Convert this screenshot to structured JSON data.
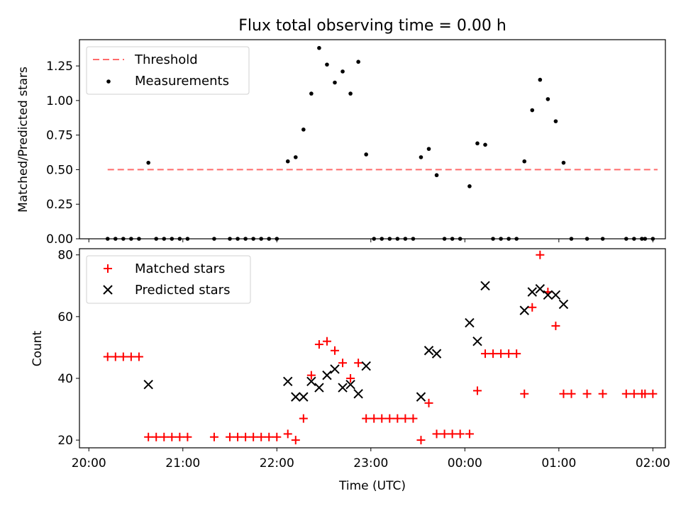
{
  "chart_data": [
    {
      "type": "scatter",
      "title": "Flux total observing time = 0.00 h",
      "ylabel": "Matched/Predicted stars",
      "ylim": [
        0,
        1.44
      ],
      "yticks": [
        0,
        0.25,
        0.5,
        0.75,
        1.0,
        1.25
      ],
      "ytick_labels": [
        "0.00",
        "0.25",
        "0.50",
        "0.75",
        "1.00",
        "1.25"
      ],
      "legend": {
        "placement": "upper-left",
        "entries": [
          "Threshold",
          "Measurements"
        ]
      },
      "threshold": {
        "name": "Threshold",
        "value": 0.5,
        "x_range": [
          "20:12",
          "02:03"
        ],
        "color": "#ff6b6b"
      },
      "series": [
        {
          "name": "Measurements",
          "color": "#000000",
          "points": [
            [
              "20:12",
              0
            ],
            [
              "20:17",
              0
            ],
            [
              "20:22",
              0
            ],
            [
              "20:27",
              0
            ],
            [
              "20:32",
              0
            ],
            [
              "20:38",
              0.55
            ],
            [
              "20:43",
              0
            ],
            [
              "20:48",
              0
            ],
            [
              "20:53",
              0
            ],
            [
              "20:58",
              0
            ],
            [
              "21:03",
              0
            ],
            [
              "21:20",
              0
            ],
            [
              "21:30",
              0
            ],
            [
              "21:35",
              0
            ],
            [
              "21:40",
              0
            ],
            [
              "21:45",
              0
            ],
            [
              "21:50",
              0
            ],
            [
              "21:55",
              0
            ],
            [
              "22:00",
              0
            ],
            [
              "22:07",
              0.56
            ],
            [
              "22:12",
              0.59
            ],
            [
              "22:17",
              0.79
            ],
            [
              "22:22",
              1.05
            ],
            [
              "22:27",
              1.38
            ],
            [
              "22:32",
              1.26
            ],
            [
              "22:37",
              1.13
            ],
            [
              "22:42",
              1.21
            ],
            [
              "22:47",
              1.05
            ],
            [
              "22:52",
              1.28
            ],
            [
              "22:57",
              0.61
            ],
            [
              "23:02",
              0
            ],
            [
              "23:07",
              0
            ],
            [
              "23:12",
              0
            ],
            [
              "23:17",
              0
            ],
            [
              "23:22",
              0
            ],
            [
              "23:27",
              0
            ],
            [
              "23:32",
              0.59
            ],
            [
              "23:37",
              0.65
            ],
            [
              "23:42",
              0.46
            ],
            [
              "23:47",
              0
            ],
            [
              "23:52",
              0
            ],
            [
              "23:57",
              0
            ],
            [
              "00:03",
              0.38
            ],
            [
              "00:08",
              0.69
            ],
            [
              "00:13",
              0.68
            ],
            [
              "00:18",
              0
            ],
            [
              "00:23",
              0
            ],
            [
              "00:28",
              0
            ],
            [
              "00:33",
              0
            ],
            [
              "00:38",
              0.56
            ],
            [
              "00:43",
              0.93
            ],
            [
              "00:48",
              1.15
            ],
            [
              "00:53",
              1.01
            ],
            [
              "00:58",
              0.85
            ],
            [
              "01:03",
              0.55
            ],
            [
              "01:08",
              0
            ],
            [
              "01:18",
              0
            ],
            [
              "01:28",
              0
            ],
            [
              "01:43",
              0
            ],
            [
              "01:48",
              0
            ],
            [
              "01:53",
              0
            ],
            [
              "01:55",
              0
            ],
            [
              "02:00",
              0
            ]
          ]
        }
      ]
    },
    {
      "type": "scatter",
      "xlabel": "Time (UTC)",
      "ylabel": "Count",
      "ylim": [
        17.5,
        82
      ],
      "yticks": [
        20,
        40,
        60,
        80
      ],
      "xticks": [
        "20:00",
        "21:00",
        "22:00",
        "23:00",
        "00:00",
        "01:00",
        "02:00"
      ],
      "legend": {
        "placement": "upper-left",
        "entries": [
          "Matched stars",
          "Predicted stars"
        ]
      },
      "series": [
        {
          "name": "Matched stars",
          "marker": "plus",
          "color": "#ff0000",
          "points": [
            [
              "20:12",
              47
            ],
            [
              "20:17",
              47
            ],
            [
              "20:22",
              47
            ],
            [
              "20:27",
              47
            ],
            [
              "20:32",
              47
            ],
            [
              "20:38",
              21
            ],
            [
              "20:43",
              21
            ],
            [
              "20:48",
              21
            ],
            [
              "20:53",
              21
            ],
            [
              "20:58",
              21
            ],
            [
              "21:03",
              21
            ],
            [
              "21:20",
              21
            ],
            [
              "21:30",
              21
            ],
            [
              "21:35",
              21
            ],
            [
              "21:40",
              21
            ],
            [
              "21:45",
              21
            ],
            [
              "21:50",
              21
            ],
            [
              "21:55",
              21
            ],
            [
              "22:00",
              21
            ],
            [
              "22:07",
              22
            ],
            [
              "22:12",
              20
            ],
            [
              "22:17",
              27
            ],
            [
              "22:22",
              41
            ],
            [
              "22:27",
              51
            ],
            [
              "22:32",
              52
            ],
            [
              "22:37",
              49
            ],
            [
              "22:42",
              45
            ],
            [
              "22:47",
              40
            ],
            [
              "22:52",
              45
            ],
            [
              "22:57",
              27
            ],
            [
              "23:02",
              27
            ],
            [
              "23:07",
              27
            ],
            [
              "23:12",
              27
            ],
            [
              "23:17",
              27
            ],
            [
              "23:22",
              27
            ],
            [
              "23:27",
              27
            ],
            [
              "23:32",
              20
            ],
            [
              "23:37",
              32
            ],
            [
              "23:42",
              22
            ],
            [
              "23:47",
              22
            ],
            [
              "23:52",
              22
            ],
            [
              "23:57",
              22
            ],
            [
              "00:03",
              22
            ],
            [
              "00:08",
              36
            ],
            [
              "00:13",
              48
            ],
            [
              "00:18",
              48
            ],
            [
              "00:23",
              48
            ],
            [
              "00:28",
              48
            ],
            [
              "00:33",
              48
            ],
            [
              "00:38",
              35
            ],
            [
              "00:43",
              63
            ],
            [
              "00:48",
              80
            ],
            [
              "00:53",
              68
            ],
            [
              "00:58",
              57
            ],
            [
              "01:03",
              35
            ],
            [
              "01:08",
              35
            ],
            [
              "01:18",
              35
            ],
            [
              "01:28",
              35
            ],
            [
              "01:43",
              35
            ],
            [
              "01:48",
              35
            ],
            [
              "01:53",
              35
            ],
            [
              "01:55",
              35
            ],
            [
              "02:00",
              35
            ]
          ]
        },
        {
          "name": "Predicted stars",
          "marker": "x",
          "color": "#000000",
          "points": [
            [
              "20:38",
              38
            ],
            [
              "22:07",
              39
            ],
            [
              "22:12",
              34
            ],
            [
              "22:17",
              34
            ],
            [
              "22:22",
              39
            ],
            [
              "22:27",
              37
            ],
            [
              "22:32",
              41
            ],
            [
              "22:37",
              43
            ],
            [
              "22:42",
              37
            ],
            [
              "22:47",
              38
            ],
            [
              "22:52",
              35
            ],
            [
              "22:57",
              44
            ],
            [
              "23:32",
              34
            ],
            [
              "23:37",
              49
            ],
            [
              "23:42",
              48
            ],
            [
              "00:03",
              58
            ],
            [
              "00:08",
              52
            ],
            [
              "00:13",
              70
            ],
            [
              "00:38",
              62
            ],
            [
              "00:43",
              68
            ],
            [
              "00:48",
              69
            ],
            [
              "00:53",
              67
            ],
            [
              "00:58",
              67
            ],
            [
              "01:03",
              64
            ]
          ]
        }
      ]
    }
  ]
}
